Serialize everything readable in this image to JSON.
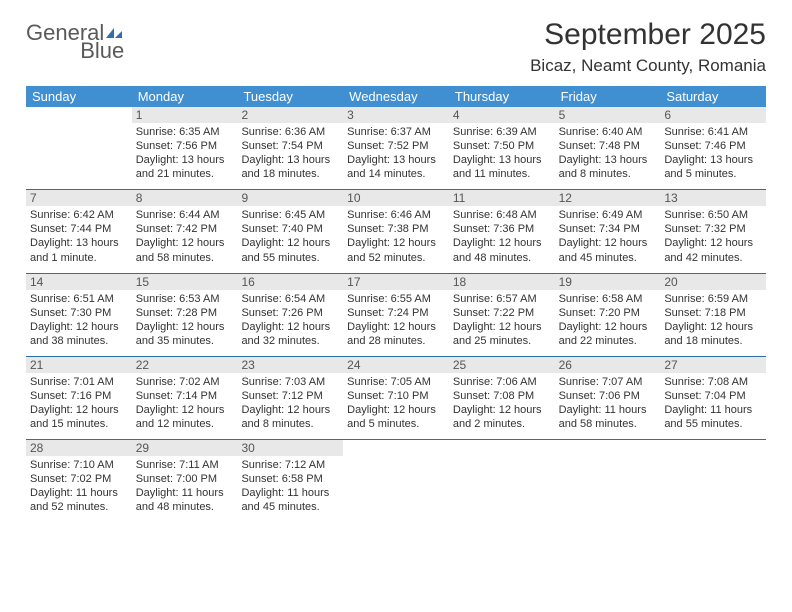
{
  "logo": {
    "line1": "General",
    "line2": "Blue"
  },
  "title": "September 2025",
  "location": "Bicaz, Neamt County, Romania",
  "day_names": [
    "Sunday",
    "Monday",
    "Tuesday",
    "Wednesday",
    "Thursday",
    "Friday",
    "Saturday"
  ],
  "colors": {
    "header_bg": "#3f8fd1",
    "header_text": "#ffffff",
    "date_bar_bg": "#e8e8e8",
    "date_bar_text": "#555555",
    "divider": "#2d6fa8",
    "body_text": "#333333",
    "logo_gray": "#5a5a5a",
    "logo_blue": "#3a8fd8"
  },
  "fonts": {
    "title_size": 30,
    "location_size": 17,
    "day_header_size": 13,
    "date_size": 12,
    "body_size": 11
  },
  "weeks": [
    [
      {
        "date": "",
        "sunrise": "",
        "sunset": "",
        "daylight": ""
      },
      {
        "date": "1",
        "sunrise": "Sunrise: 6:35 AM",
        "sunset": "Sunset: 7:56 PM",
        "daylight": "Daylight: 13 hours and 21 minutes."
      },
      {
        "date": "2",
        "sunrise": "Sunrise: 6:36 AM",
        "sunset": "Sunset: 7:54 PM",
        "daylight": "Daylight: 13 hours and 18 minutes."
      },
      {
        "date": "3",
        "sunrise": "Sunrise: 6:37 AM",
        "sunset": "Sunset: 7:52 PM",
        "daylight": "Daylight: 13 hours and 14 minutes."
      },
      {
        "date": "4",
        "sunrise": "Sunrise: 6:39 AM",
        "sunset": "Sunset: 7:50 PM",
        "daylight": "Daylight: 13 hours and 11 minutes."
      },
      {
        "date": "5",
        "sunrise": "Sunrise: 6:40 AM",
        "sunset": "Sunset: 7:48 PM",
        "daylight": "Daylight: 13 hours and 8 minutes."
      },
      {
        "date": "6",
        "sunrise": "Sunrise: 6:41 AM",
        "sunset": "Sunset: 7:46 PM",
        "daylight": "Daylight: 13 hours and 5 minutes."
      }
    ],
    [
      {
        "date": "7",
        "sunrise": "Sunrise: 6:42 AM",
        "sunset": "Sunset: 7:44 PM",
        "daylight": "Daylight: 13 hours and 1 minute."
      },
      {
        "date": "8",
        "sunrise": "Sunrise: 6:44 AM",
        "sunset": "Sunset: 7:42 PM",
        "daylight": "Daylight: 12 hours and 58 minutes."
      },
      {
        "date": "9",
        "sunrise": "Sunrise: 6:45 AM",
        "sunset": "Sunset: 7:40 PM",
        "daylight": "Daylight: 12 hours and 55 minutes."
      },
      {
        "date": "10",
        "sunrise": "Sunrise: 6:46 AM",
        "sunset": "Sunset: 7:38 PM",
        "daylight": "Daylight: 12 hours and 52 minutes."
      },
      {
        "date": "11",
        "sunrise": "Sunrise: 6:48 AM",
        "sunset": "Sunset: 7:36 PM",
        "daylight": "Daylight: 12 hours and 48 minutes."
      },
      {
        "date": "12",
        "sunrise": "Sunrise: 6:49 AM",
        "sunset": "Sunset: 7:34 PM",
        "daylight": "Daylight: 12 hours and 45 minutes."
      },
      {
        "date": "13",
        "sunrise": "Sunrise: 6:50 AM",
        "sunset": "Sunset: 7:32 PM",
        "daylight": "Daylight: 12 hours and 42 minutes."
      }
    ],
    [
      {
        "date": "14",
        "sunrise": "Sunrise: 6:51 AM",
        "sunset": "Sunset: 7:30 PM",
        "daylight": "Daylight: 12 hours and 38 minutes."
      },
      {
        "date": "15",
        "sunrise": "Sunrise: 6:53 AM",
        "sunset": "Sunset: 7:28 PM",
        "daylight": "Daylight: 12 hours and 35 minutes."
      },
      {
        "date": "16",
        "sunrise": "Sunrise: 6:54 AM",
        "sunset": "Sunset: 7:26 PM",
        "daylight": "Daylight: 12 hours and 32 minutes."
      },
      {
        "date": "17",
        "sunrise": "Sunrise: 6:55 AM",
        "sunset": "Sunset: 7:24 PM",
        "daylight": "Daylight: 12 hours and 28 minutes."
      },
      {
        "date": "18",
        "sunrise": "Sunrise: 6:57 AM",
        "sunset": "Sunset: 7:22 PM",
        "daylight": "Daylight: 12 hours and 25 minutes."
      },
      {
        "date": "19",
        "sunrise": "Sunrise: 6:58 AM",
        "sunset": "Sunset: 7:20 PM",
        "daylight": "Daylight: 12 hours and 22 minutes."
      },
      {
        "date": "20",
        "sunrise": "Sunrise: 6:59 AM",
        "sunset": "Sunset: 7:18 PM",
        "daylight": "Daylight: 12 hours and 18 minutes."
      }
    ],
    [
      {
        "date": "21",
        "sunrise": "Sunrise: 7:01 AM",
        "sunset": "Sunset: 7:16 PM",
        "daylight": "Daylight: 12 hours and 15 minutes."
      },
      {
        "date": "22",
        "sunrise": "Sunrise: 7:02 AM",
        "sunset": "Sunset: 7:14 PM",
        "daylight": "Daylight: 12 hours and 12 minutes."
      },
      {
        "date": "23",
        "sunrise": "Sunrise: 7:03 AM",
        "sunset": "Sunset: 7:12 PM",
        "daylight": "Daylight: 12 hours and 8 minutes."
      },
      {
        "date": "24",
        "sunrise": "Sunrise: 7:05 AM",
        "sunset": "Sunset: 7:10 PM",
        "daylight": "Daylight: 12 hours and 5 minutes."
      },
      {
        "date": "25",
        "sunrise": "Sunrise: 7:06 AM",
        "sunset": "Sunset: 7:08 PM",
        "daylight": "Daylight: 12 hours and 2 minutes."
      },
      {
        "date": "26",
        "sunrise": "Sunrise: 7:07 AM",
        "sunset": "Sunset: 7:06 PM",
        "daylight": "Daylight: 11 hours and 58 minutes."
      },
      {
        "date": "27",
        "sunrise": "Sunrise: 7:08 AM",
        "sunset": "Sunset: 7:04 PM",
        "daylight": "Daylight: 11 hours and 55 minutes."
      }
    ],
    [
      {
        "date": "28",
        "sunrise": "Sunrise: 7:10 AM",
        "sunset": "Sunset: 7:02 PM",
        "daylight": "Daylight: 11 hours and 52 minutes."
      },
      {
        "date": "29",
        "sunrise": "Sunrise: 7:11 AM",
        "sunset": "Sunset: 7:00 PM",
        "daylight": "Daylight: 11 hours and 48 minutes."
      },
      {
        "date": "30",
        "sunrise": "Sunrise: 7:12 AM",
        "sunset": "Sunset: 6:58 PM",
        "daylight": "Daylight: 11 hours and 45 minutes."
      },
      {
        "date": "",
        "sunrise": "",
        "sunset": "",
        "daylight": ""
      },
      {
        "date": "",
        "sunrise": "",
        "sunset": "",
        "daylight": ""
      },
      {
        "date": "",
        "sunrise": "",
        "sunset": "",
        "daylight": ""
      },
      {
        "date": "",
        "sunrise": "",
        "sunset": "",
        "daylight": ""
      }
    ]
  ]
}
